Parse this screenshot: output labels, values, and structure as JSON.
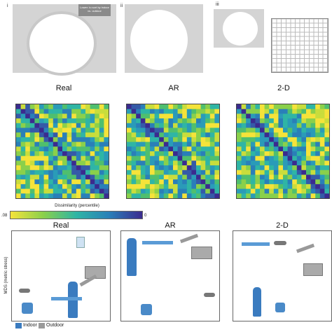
{
  "panel_i": {
    "label": "i",
    "tooltip": "Lower: to sort by indoor vs. outdoor"
  },
  "panel_ii": {
    "label": "ii"
  },
  "panel_iii": {
    "label": "iii"
  },
  "matrices": {
    "titles": [
      "Real",
      "AR",
      "2-D"
    ],
    "colorbar": {
      "label": "Dissimilarity (percentile)",
      "min_label": "0",
      "max_label": ".08"
    },
    "colors": {
      "low": "#3b2b8f",
      "mid": "#2fb5a5",
      "high": "#f5e33a"
    }
  },
  "mds": {
    "titles": [
      "Real",
      "AR",
      "2-D"
    ],
    "ylabel": "MDS (metric stress)",
    "legend": [
      {
        "label": "Indoor",
        "color": "#3a7bbf"
      },
      {
        "label": "Outdoor",
        "color": "#9a9a9a"
      }
    ]
  }
}
